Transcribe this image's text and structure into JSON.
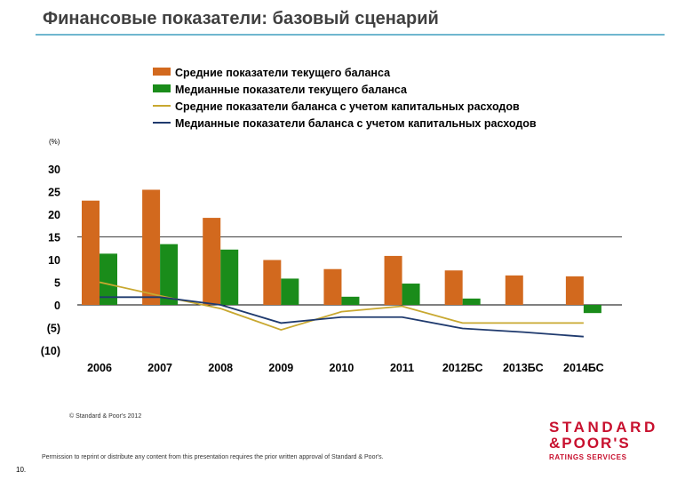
{
  "header": {
    "title": "Финансовые показатели: базовый сценарий"
  },
  "footer": {
    "copyright": "© Standard & Poor's 2012",
    "permission": "Permission to reprint or distribute any content from this presentation requires the prior written approval of Standard & Poor's.",
    "page_number": "10."
  },
  "logo": {
    "line1": "STANDARD",
    "line2": "&POOR'S",
    "line3": "RATINGS SERVICES"
  },
  "colors": {
    "orange": "#d2691e",
    "green": "#1a8c1a",
    "gold": "#c8a830",
    "navy": "#1f3a6e",
    "title_rule": "#6fb7cf",
    "logo_red": "#c8102e"
  },
  "chart_data": {
    "type": "bar",
    "title": "",
    "unit_label": "(%)",
    "categories": [
      "2006",
      "2007",
      "2008",
      "2009",
      "2010",
      "2011",
      "2012БС",
      "2013БС",
      "2014БС"
    ],
    "ylim": [
      -10,
      30
    ],
    "yticks": [
      30,
      25,
      20,
      15,
      10,
      5,
      0,
      -5,
      -10
    ],
    "ytick_labels": [
      "30",
      "25",
      "20",
      "15",
      "10",
      "5",
      "0",
      "(5)",
      "(10)"
    ],
    "reference_line": 15,
    "legend_position": "top",
    "series": [
      {
        "name": "Средние показатели текущего баланса",
        "kind": "bar",
        "color": "#d2691e",
        "values": [
          23,
          25.4,
          19.2,
          9.9,
          7.9,
          10.8,
          7.6,
          6.5,
          6.3
        ]
      },
      {
        "name": "Медианные показатели текущего баланса",
        "kind": "bar",
        "color": "#1a8c1a",
        "values": [
          11.3,
          13.4,
          12.2,
          5.8,
          1.8,
          4.7,
          1.4,
          null,
          -1.8
        ]
      },
      {
        "name": "Средние показатели баланса с учетом капитальных расходов",
        "kind": "line",
        "color": "#c8a830",
        "values": [
          5,
          2,
          -0.8,
          -5.5,
          -1.5,
          -0.3,
          -4,
          -4,
          -4
        ]
      },
      {
        "name": "Медианные показатели баланса с учетом капитальных расходов",
        "kind": "line",
        "color": "#1f3a6e",
        "values": [
          1.7,
          1.7,
          0,
          -4,
          -2.7,
          -2.7,
          -5.2,
          -6,
          -7
        ]
      }
    ]
  }
}
